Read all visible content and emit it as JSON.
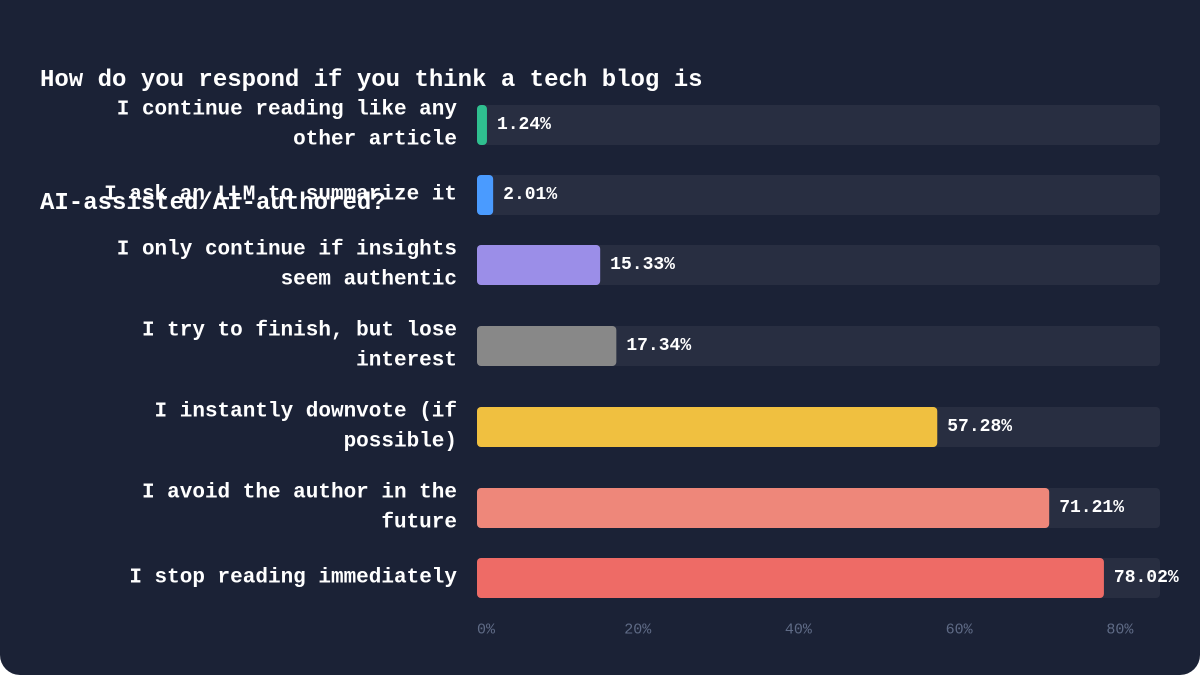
{
  "chart_data": {
    "type": "bar",
    "orientation": "horizontal",
    "title_lines": [
      "How do you respond if you think a tech blog is",
      "AI-assisted/AI-authored?"
    ],
    "categories": [
      [
        "I continue reading like any",
        "other article"
      ],
      [
        "I ask an LLM to summarize it"
      ],
      [
        "I only continue if insights",
        "seem authentic"
      ],
      [
        "I try to finish, but lose",
        "interest"
      ],
      [
        "I instantly downvote (if",
        "possible)"
      ],
      [
        "I avoid the author in the",
        "future"
      ],
      [
        "I stop reading immediately"
      ]
    ],
    "values": [
      1.24,
      2.01,
      15.33,
      17.34,
      57.28,
      71.21,
      78.02
    ],
    "value_labels": [
      "1.24%",
      "2.01%",
      "15.33%",
      "17.34%",
      "57.28%",
      "71.21%",
      "78.02%"
    ],
    "colors": [
      "#2fbf8f",
      "#4a9bff",
      "#9b8ee8",
      "#888888",
      "#f0c040",
      "#ee877a",
      "#ee6b66"
    ],
    "xlim": [
      0,
      85
    ],
    "xticks": [
      0,
      20,
      40,
      60,
      80
    ],
    "xtick_labels": [
      "0%",
      "20%",
      "40%",
      "60%",
      "80%"
    ],
    "track_color": "#282e41",
    "background_color": "#1b2236"
  }
}
